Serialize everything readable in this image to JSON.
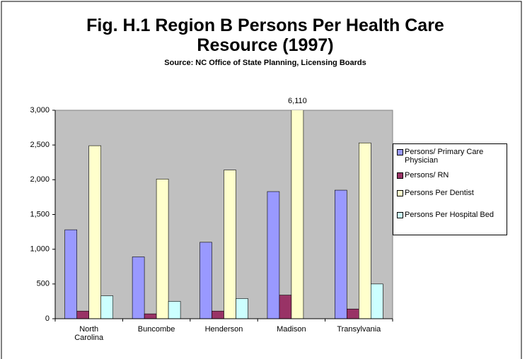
{
  "chart_data": {
    "type": "bar",
    "title": "Fig. H.1 Region B Persons Per Health Care Resource (1997)",
    "subtitle": "Source: NC Office of State Planning, Licensing Boards",
    "categories": [
      "North Carolina",
      "Buncombe",
      "Henderson",
      "Madison",
      "Transylvania"
    ],
    "series": [
      {
        "name": "Persons/ Primary Care  Physician",
        "color": "#9999ff",
        "values": [
          1280,
          890,
          1100,
          1830,
          1850
        ]
      },
      {
        "name": "Persons/ RN",
        "color": "#993366",
        "values": [
          110,
          70,
          110,
          340,
          140
        ]
      },
      {
        "name": "Persons Per  Dentist",
        "color": "#ffffcc",
        "values": [
          2490,
          2010,
          2140,
          6110,
          2530
        ],
        "value_labels": [
          null,
          null,
          null,
          "6,110",
          null
        ]
      },
      {
        "name": "Persons Per  Hospital Bed",
        "color": "#ccffff",
        "values": [
          330,
          250,
          290,
          null,
          500
        ]
      }
    ],
    "ylim": [
      0,
      3000
    ],
    "yticks": [
      0,
      {
        "value": 500,
        "label": "500"
      },
      {
        "value": 1000,
        "label": "1,000"
      },
      {
        "value": 1500,
        "label": "1,500"
      },
      {
        "value": 2000,
        "label": "2,000"
      },
      {
        "value": 2500,
        "label": "2,500"
      },
      {
        "value": 3000,
        "label": "3,000"
      }
    ],
    "grid": false,
    "plot_background": "#c0c0c0",
    "legend": "right"
  }
}
